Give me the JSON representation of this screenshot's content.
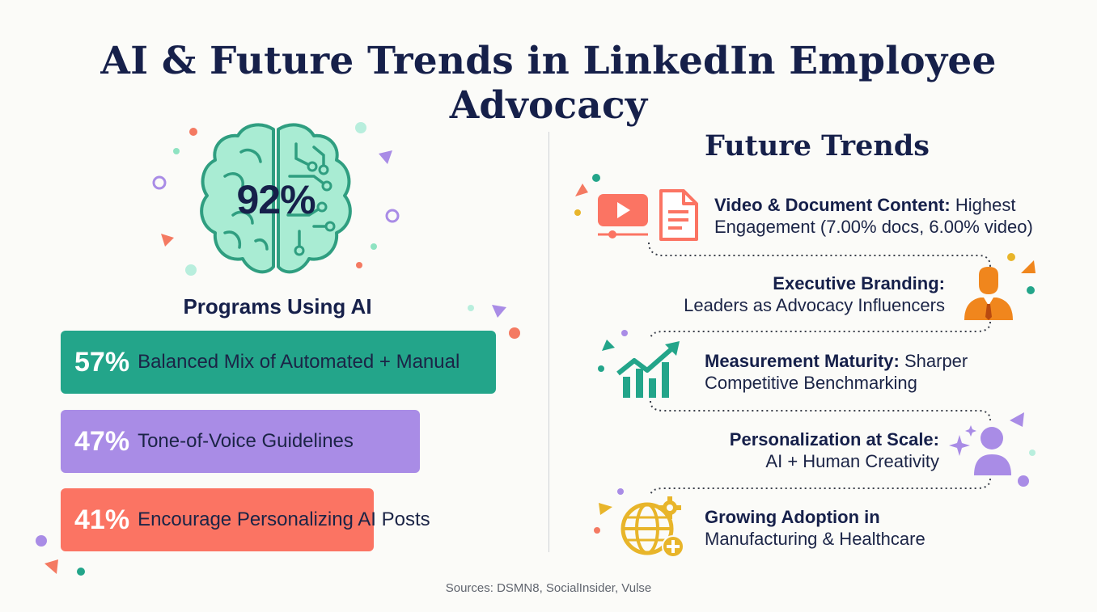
{
  "title": "AI & Future Trends in LinkedIn Employee Advocacy",
  "left_panel": {
    "headline_stat": "92%",
    "headline_label": "Programs Using AI"
  },
  "chart_data": {
    "type": "bar",
    "orientation": "horizontal",
    "title": "",
    "categories": [
      "Balanced Mix of Automated + Manual",
      "Tone-of-Voice Guidelines",
      "Encourage Personalizing AI Posts"
    ],
    "values": [
      57,
      47,
      41
    ],
    "value_labels": [
      "57%",
      "47%",
      "41%"
    ],
    "unit": "%",
    "colors": [
      "#23a58a",
      "#a98ce6",
      "#fb7463"
    ]
  },
  "right_panel": {
    "title": "Future Trends",
    "trends": [
      {
        "heading": "Video & Document Content:",
        "text": "Highest",
        "text2": "Engagement (7.00% docs, 6.00% video)",
        "icon": "video-document-icon"
      },
      {
        "heading": "Executive Branding:",
        "text": "",
        "text2": "Leaders as Advocacy Influencers",
        "icon": "executive-icon"
      },
      {
        "heading": "Measurement Maturity:",
        "text": "Sharper",
        "text2": "Competitive Benchmarking",
        "icon": "growth-chart-icon"
      },
      {
        "heading": "Personalization at Scale:",
        "text": "",
        "text2": "AI + Human Creativity",
        "icon": "person-sparkle-icon"
      },
      {
        "heading": "Growing Adoption in",
        "text": "",
        "text2": "Manufacturing & Healthcare",
        "icon": "globe-gear-plus-icon"
      }
    ]
  },
  "footer": "Sources: DSMN8, SocialInsider, Vulse",
  "colors": {
    "navy": "#16204a",
    "teal": "#23a58a",
    "purple": "#a98ce6",
    "coral": "#fb7463",
    "orange": "#f0861d",
    "gold": "#e8b52a",
    "mint": "#8fe3c2"
  }
}
